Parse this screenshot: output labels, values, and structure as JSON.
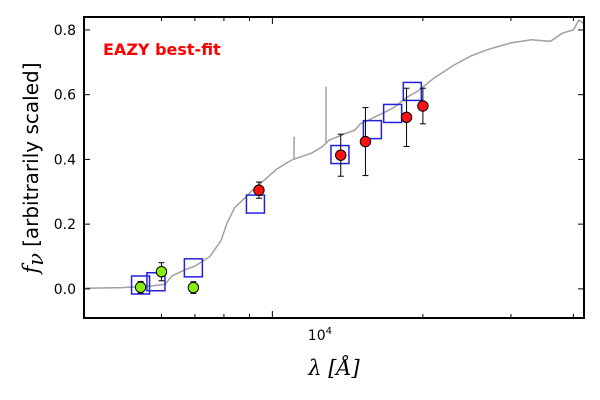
{
  "chart_data": {
    "type": "scatter",
    "annotation": "EAZY best-fit",
    "annotation_color": "#ff0000",
    "xlabel": "λ [Å]",
    "ylabel_symbol": "f",
    "ylabel_sub": "ν",
    "ylabel_text": "[arbitrarily scaled]",
    "x_scale": "log",
    "xlim": [
      4200,
      42000
    ],
    "ylim": [
      -0.09,
      0.84
    ],
    "x_tick_label": {
      "value": 10000,
      "base": "10",
      "exp": "4"
    },
    "x_minor_ticks": [
      6000,
      7000,
      8000,
      9000,
      20000,
      30000,
      40000
    ],
    "y_ticks": [
      "0.0",
      "0.2",
      "0.4",
      "0.6",
      "0.8"
    ],
    "y_tick_values": [
      0.0,
      0.2,
      0.4,
      0.6,
      0.8
    ],
    "colors": {
      "model_line": "#a0a0a0",
      "template_box": "#2222dd",
      "observed_red": "#ff1111",
      "observed_green": "#88ee11",
      "errorbar": "#000000"
    },
    "series": [
      {
        "name": "best-fit template",
        "kind": "line",
        "x": [
          4200,
          5000,
          5500,
          5800,
          6100,
          6300,
          6500,
          6700,
          7000,
          7500,
          7900,
          8100,
          8400,
          8800,
          9200,
          9700,
          10200,
          10700,
          11000,
          11500,
          12000,
          12300,
          12600,
          13000,
          13500,
          14000,
          14600,
          15000,
          15500,
          16500,
          17500,
          18500,
          19500,
          21000,
          23000,
          25000,
          27000,
          30000,
          33000,
          36000,
          38000,
          40000,
          41000,
          42000
        ],
        "y": [
          0.002,
          0.004,
          0.007,
          0.01,
          0.014,
          0.04,
          0.05,
          0.06,
          0.07,
          0.1,
          0.15,
          0.2,
          0.25,
          0.28,
          0.31,
          0.34,
          0.37,
          0.39,
          0.4,
          0.41,
          0.42,
          0.43,
          0.44,
          0.46,
          0.47,
          0.48,
          0.49,
          0.51,
          0.52,
          0.54,
          0.56,
          0.59,
          0.61,
          0.65,
          0.69,
          0.72,
          0.74,
          0.76,
          0.77,
          0.765,
          0.79,
          0.8,
          0.83,
          0.82
        ],
        "spikes": [
          {
            "x": 12800,
            "y_top": 0.625,
            "y_base": 0.45
          },
          {
            "x": 11050,
            "y_top": 0.47,
            "y_base": 0.4
          }
        ]
      },
      {
        "name": "template photometry",
        "kind": "box",
        "x": [
          5450,
          5850,
          6950,
          9250,
          13650,
          15850,
          17400,
          19050
        ],
        "y": [
          0.012,
          0.022,
          0.065,
          0.262,
          0.415,
          0.492,
          0.542,
          0.61
        ]
      },
      {
        "name": "observed (red)",
        "kind": "points",
        "x": [
          9400,
          13700,
          15350,
          18550,
          20000
        ],
        "y": [
          0.305,
          0.413,
          0.455,
          0.53,
          0.565
        ],
        "yerr": [
          0.025,
          0.065,
          0.105,
          0.09,
          0.055
        ]
      },
      {
        "name": "observed (green)",
        "kind": "points",
        "x": [
          5450,
          6000,
          6950
        ],
        "y": [
          0.005,
          0.053,
          0.004
        ],
        "yerr": [
          0.018,
          0.028,
          0.018
        ]
      }
    ]
  }
}
